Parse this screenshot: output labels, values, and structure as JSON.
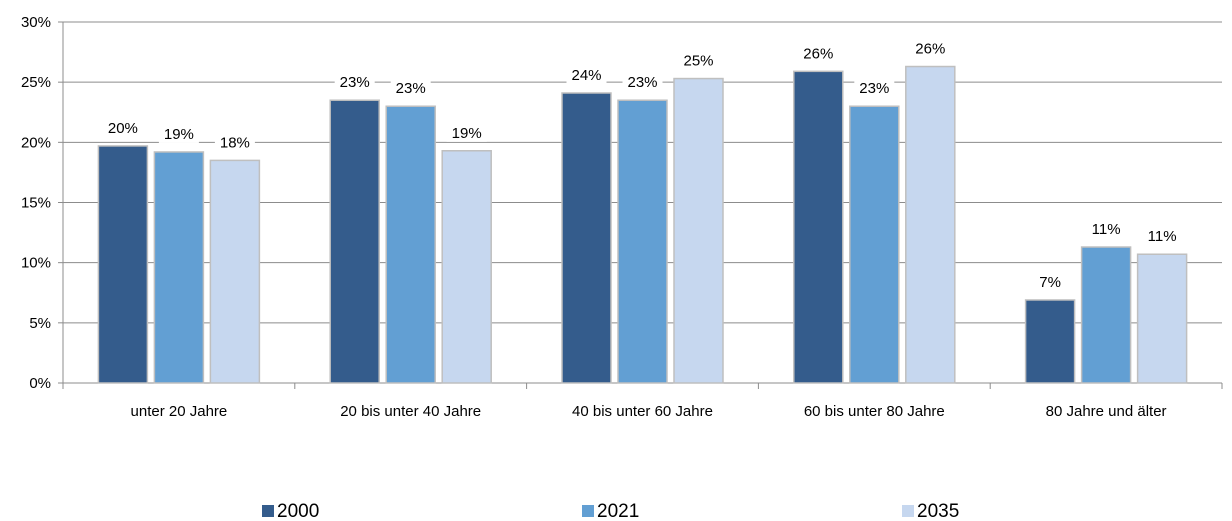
{
  "chart_data": {
    "type": "bar",
    "categories": [
      "unter 20 Jahre",
      "20 bis unter 40 Jahre",
      "40 bis unter 60 Jahre",
      "60 bis unter 80 Jahre",
      "80 Jahre und älter"
    ],
    "series": [
      {
        "name": "2000",
        "color": "#345c8c",
        "values": [
          19.7,
          23.5,
          24.1,
          25.9,
          6.9
        ],
        "labels": [
          "20%",
          "23%",
          "24%",
          "26%",
          "7%"
        ]
      },
      {
        "name": "2021",
        "color": "#629fd3",
        "values": [
          19.2,
          23.0,
          23.5,
          23.0,
          11.3
        ],
        "labels": [
          "19%",
          "23%",
          "23%",
          "23%",
          "11%"
        ]
      },
      {
        "name": "2035",
        "color": "#c6d7ef",
        "values": [
          18.5,
          19.3,
          25.3,
          26.3,
          10.7
        ],
        "labels": [
          "18%",
          "19%",
          "25%",
          "26%",
          "11%"
        ]
      }
    ],
    "y_ticks": [
      "0%",
      "5%",
      "10%",
      "15%",
      "20%",
      "25%",
      "30%"
    ],
    "ylim": [
      0,
      30
    ],
    "grid": true,
    "legend_position": "bottom",
    "title": "",
    "xlabel": "",
    "ylabel": ""
  }
}
